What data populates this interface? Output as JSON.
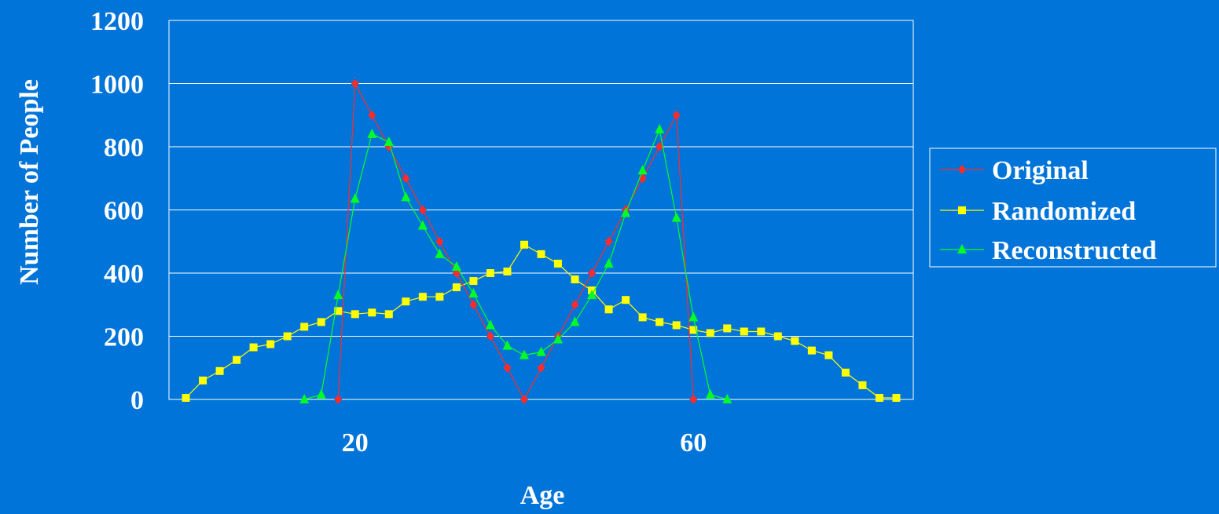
{
  "chart_data": {
    "type": "line",
    "title": "",
    "xlabel": "Age",
    "ylabel": "Number of People",
    "ylim": [
      0,
      1200
    ],
    "yticks": [
      0,
      200,
      400,
      600,
      800,
      1000,
      1200
    ],
    "xlim": [
      -2,
      86
    ],
    "xticks": [
      20,
      60
    ],
    "grid": true,
    "legend_position": "right",
    "colors": {
      "background": "#0074d9",
      "grid": "#ffffff",
      "text": "#ffffff"
    },
    "series": [
      {
        "name": "Original",
        "color": "#ff2a2a",
        "marker": "diamond",
        "x": [
          18,
          20,
          22,
          24,
          26,
          28,
          30,
          32,
          34,
          36,
          38,
          40,
          42,
          44,
          46,
          48,
          50,
          52,
          54,
          56,
          58,
          60
        ],
        "y": [
          0,
          1000,
          900,
          800,
          700,
          600,
          500,
          400,
          300,
          200,
          100,
          0,
          100,
          200,
          300,
          400,
          500,
          600,
          700,
          800,
          900,
          0
        ]
      },
      {
        "name": "Randomized",
        "color": "#ffff00",
        "marker": "square",
        "x": [
          0,
          2,
          4,
          6,
          8,
          10,
          12,
          14,
          16,
          18,
          20,
          22,
          24,
          26,
          28,
          30,
          32,
          34,
          36,
          38,
          40,
          42,
          44,
          46,
          48,
          50,
          52,
          54,
          56,
          58,
          60,
          62,
          64,
          66,
          68,
          70,
          72,
          74,
          76,
          78,
          80,
          82,
          84
        ],
        "y": [
          5,
          60,
          90,
          125,
          165,
          175,
          200,
          230,
          245,
          280,
          270,
          275,
          270,
          310,
          325,
          325,
          355,
          375,
          400,
          405,
          490,
          460,
          430,
          380,
          345,
          285,
          315,
          260,
          245,
          235,
          220,
          210,
          225,
          215,
          215,
          200,
          185,
          155,
          140,
          85,
          45,
          5,
          5
        ]
      },
      {
        "name": "Reconstructed",
        "color": "#00ff22",
        "marker": "triangle",
        "x": [
          14,
          16,
          18,
          20,
          22,
          24,
          26,
          28,
          30,
          32,
          34,
          36,
          38,
          40,
          42,
          44,
          46,
          48,
          50,
          52,
          54,
          56,
          58,
          60,
          62,
          64
        ],
        "y": [
          0,
          15,
          330,
          635,
          840,
          815,
          640,
          550,
          460,
          420,
          335,
          235,
          170,
          140,
          150,
          190,
          245,
          330,
          430,
          590,
          725,
          855,
          575,
          260,
          15,
          0
        ]
      }
    ]
  }
}
